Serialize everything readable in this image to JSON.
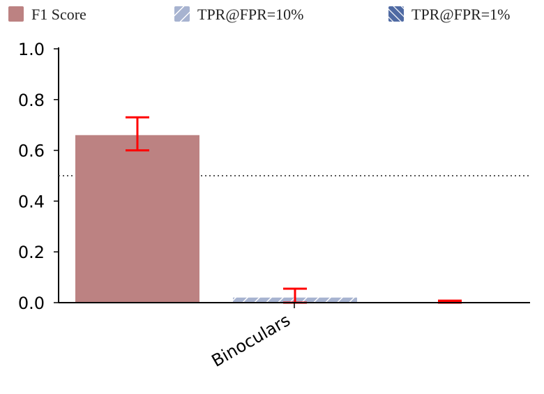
{
  "chart_data": {
    "type": "bar",
    "title": "",
    "xlabel": "",
    "ylabel": "",
    "categories": [
      "Binoculars"
    ],
    "ylim": [
      0,
      1.0
    ],
    "yticks": [
      "0.0",
      "0.2",
      "0.4",
      "0.6",
      "0.8",
      "1.0"
    ],
    "reference_line": 0.5,
    "legend_position": "top",
    "series": [
      {
        "name": "F1 Score",
        "color": "#bc8282",
        "pattern": "solid",
        "values": [
          0.66
        ],
        "error": [
          [
            0.06,
            0.07
          ]
        ]
      },
      {
        "name": "TPR@FPR=10%",
        "color": "#a7b3d0",
        "pattern": "forward-hatch",
        "values": [
          0.02
        ],
        "error": [
          [
            0.02,
            0.035
          ]
        ]
      },
      {
        "name": "TPR@FPR=1%",
        "color": "#4f6aa3",
        "pattern": "back-hatch",
        "values": [
          0.0
        ],
        "error": [
          [
            0.0,
            0.008
          ]
        ]
      }
    ],
    "error_bar_color": "#ff0000",
    "grid": false
  }
}
